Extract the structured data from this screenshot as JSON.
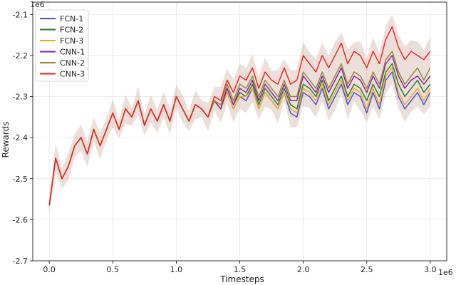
{
  "chart_data": {
    "type": "line",
    "title": "",
    "xlabel": "Timesteps",
    "ylabel": "Rewards",
    "x_offset_label": "1e6",
    "y_offset_label": "1e6",
    "xlim": [
      -0.13,
      3.13
    ],
    "ylim": [
      -2.7,
      -2.07
    ],
    "x_ticks": [
      0.0,
      0.5,
      1.0,
      1.5,
      2.0,
      2.5,
      3.0
    ],
    "x_tick_labels": [
      "0.0",
      "0.5",
      "1.0",
      "1.5",
      "2.0",
      "2.5",
      "3.0"
    ],
    "y_ticks": [
      -2.7,
      -2.6,
      -2.5,
      -2.4,
      -2.3,
      -2.2,
      -2.1
    ],
    "y_tick_labels": [
      "-2.7",
      "-2.6",
      "-2.5",
      "-2.4",
      "-2.3",
      "-2.2",
      "-2.1"
    ],
    "grid": true,
    "legend_position": "top-left",
    "x": [
      0.0,
      0.05,
      0.1,
      0.15,
      0.2,
      0.25,
      0.3,
      0.35,
      0.4,
      0.45,
      0.5,
      0.55,
      0.6,
      0.65,
      0.7,
      0.75,
      0.8,
      0.85,
      0.9,
      0.95,
      1.0,
      1.05,
      1.1,
      1.15,
      1.2,
      1.25,
      1.3,
      1.35,
      1.4,
      1.45,
      1.5,
      1.55,
      1.6,
      1.65,
      1.7,
      1.75,
      1.8,
      1.85,
      1.9,
      1.95,
      2.0,
      2.05,
      2.1,
      2.15,
      2.2,
      2.25,
      2.3,
      2.35,
      2.4,
      2.45,
      2.5,
      2.55,
      2.6,
      2.65,
      2.7,
      2.75,
      2.8,
      2.85,
      2.9,
      2.95,
      3.0
    ],
    "series": [
      {
        "name": "FCN-1",
        "color": "#3b4fd9",
        "values": [
          -2.565,
          -2.45,
          -2.5,
          -2.47,
          -2.42,
          -2.4,
          -2.44,
          -2.38,
          -2.42,
          -2.38,
          -2.34,
          -2.38,
          -2.33,
          -2.35,
          -2.31,
          -2.37,
          -2.33,
          -2.36,
          -2.32,
          -2.36,
          -2.3,
          -2.33,
          -2.36,
          -2.32,
          -2.33,
          -2.35,
          -2.31,
          -2.33,
          -2.29,
          -2.33,
          -2.3,
          -2.31,
          -2.28,
          -2.33,
          -2.29,
          -2.31,
          -2.33,
          -2.29,
          -2.34,
          -2.35,
          -2.29,
          -2.3,
          -2.32,
          -2.28,
          -2.33,
          -2.3,
          -2.27,
          -2.32,
          -2.29,
          -2.3,
          -2.34,
          -2.29,
          -2.33,
          -2.26,
          -2.24,
          -2.3,
          -2.33,
          -2.31,
          -2.29,
          -2.32,
          -2.29
        ]
      },
      {
        "name": "FCN-2",
        "color": "#1f7a1f",
        "values": [
          -2.565,
          -2.45,
          -2.5,
          -2.47,
          -2.42,
          -2.4,
          -2.44,
          -2.38,
          -2.42,
          -2.38,
          -2.34,
          -2.38,
          -2.33,
          -2.35,
          -2.31,
          -2.37,
          -2.33,
          -2.36,
          -2.32,
          -2.36,
          -2.3,
          -2.33,
          -2.36,
          -2.32,
          -2.33,
          -2.35,
          -2.31,
          -2.33,
          -2.28,
          -2.32,
          -2.29,
          -2.3,
          -2.27,
          -2.32,
          -2.28,
          -2.3,
          -2.32,
          -2.28,
          -2.32,
          -2.33,
          -2.27,
          -2.28,
          -2.3,
          -2.26,
          -2.31,
          -2.28,
          -2.25,
          -2.3,
          -2.27,
          -2.28,
          -2.31,
          -2.27,
          -2.3,
          -2.24,
          -2.22,
          -2.27,
          -2.3,
          -2.28,
          -2.26,
          -2.29,
          -2.27
        ]
      },
      {
        "name": "FCN-3",
        "color": "#f5a623",
        "values": [
          -2.565,
          -2.45,
          -2.5,
          -2.47,
          -2.42,
          -2.4,
          -2.44,
          -2.38,
          -2.42,
          -2.38,
          -2.34,
          -2.38,
          -2.33,
          -2.35,
          -2.31,
          -2.37,
          -2.33,
          -2.36,
          -2.32,
          -2.36,
          -2.3,
          -2.33,
          -2.36,
          -2.32,
          -2.33,
          -2.35,
          -2.31,
          -2.33,
          -2.29,
          -2.33,
          -2.3,
          -2.3,
          -2.28,
          -2.33,
          -2.29,
          -2.31,
          -2.33,
          -2.29,
          -2.33,
          -2.34,
          -2.28,
          -2.29,
          -2.31,
          -2.27,
          -2.32,
          -2.29,
          -2.26,
          -2.31,
          -2.28,
          -2.29,
          -2.33,
          -2.28,
          -2.32,
          -2.25,
          -2.23,
          -2.29,
          -2.32,
          -2.3,
          -2.28,
          -2.31,
          -2.28
        ]
      },
      {
        "name": "CNN-1",
        "color": "#8b1a9e",
        "values": [
          -2.565,
          -2.45,
          -2.5,
          -2.47,
          -2.42,
          -2.4,
          -2.44,
          -2.38,
          -2.42,
          -2.38,
          -2.34,
          -2.38,
          -2.33,
          -2.35,
          -2.31,
          -2.37,
          -2.33,
          -2.36,
          -2.32,
          -2.36,
          -2.3,
          -2.33,
          -2.36,
          -2.32,
          -2.33,
          -2.35,
          -2.31,
          -2.33,
          -2.28,
          -2.32,
          -2.28,
          -2.29,
          -2.26,
          -2.31,
          -2.27,
          -2.29,
          -2.31,
          -2.27,
          -2.31,
          -2.31,
          -2.25,
          -2.27,
          -2.29,
          -2.25,
          -2.29,
          -2.26,
          -2.23,
          -2.28,
          -2.25,
          -2.26,
          -2.29,
          -2.25,
          -2.28,
          -2.22,
          -2.2,
          -2.25,
          -2.28,
          -2.26,
          -2.25,
          -2.27,
          -2.25
        ]
      },
      {
        "name": "CNN-2",
        "color": "#8c8c2a",
        "values": [
          -2.565,
          -2.45,
          -2.5,
          -2.47,
          -2.42,
          -2.4,
          -2.44,
          -2.38,
          -2.42,
          -2.38,
          -2.34,
          -2.38,
          -2.33,
          -2.35,
          -2.31,
          -2.37,
          -2.33,
          -2.36,
          -2.32,
          -2.36,
          -2.3,
          -2.33,
          -2.36,
          -2.32,
          -2.33,
          -2.35,
          -2.31,
          -2.32,
          -2.27,
          -2.31,
          -2.27,
          -2.28,
          -2.25,
          -2.3,
          -2.26,
          -2.28,
          -2.3,
          -2.26,
          -2.3,
          -2.3,
          -2.24,
          -2.26,
          -2.28,
          -2.24,
          -2.28,
          -2.25,
          -2.22,
          -2.27,
          -2.24,
          -2.25,
          -2.28,
          -2.24,
          -2.27,
          -2.21,
          -2.19,
          -2.24,
          -2.27,
          -2.25,
          -2.23,
          -2.26,
          -2.23
        ]
      },
      {
        "name": "CNN-3",
        "color": "#e8201a",
        "values": [
          -2.565,
          -2.45,
          -2.5,
          -2.47,
          -2.42,
          -2.4,
          -2.44,
          -2.38,
          -2.42,
          -2.38,
          -2.34,
          -2.38,
          -2.33,
          -2.35,
          -2.31,
          -2.37,
          -2.33,
          -2.36,
          -2.32,
          -2.36,
          -2.3,
          -2.33,
          -2.36,
          -2.32,
          -2.33,
          -2.35,
          -2.3,
          -2.31,
          -2.26,
          -2.29,
          -2.25,
          -2.26,
          -2.23,
          -2.28,
          -2.24,
          -2.26,
          -2.27,
          -2.23,
          -2.27,
          -2.26,
          -2.2,
          -2.22,
          -2.24,
          -2.2,
          -2.23,
          -2.2,
          -2.17,
          -2.22,
          -2.19,
          -2.2,
          -2.23,
          -2.19,
          -2.22,
          -2.16,
          -2.13,
          -2.18,
          -2.21,
          -2.19,
          -2.2,
          -2.21,
          -2.19
        ]
      }
    ]
  }
}
